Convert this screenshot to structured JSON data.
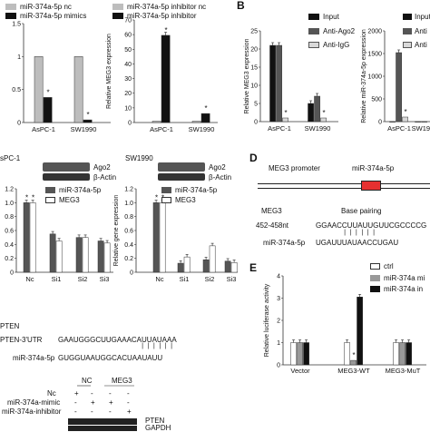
{
  "colors": {
    "black": "#111111",
    "gray": "#bdbdbd",
    "light": "#d9d9d9",
    "white": "#ffffff",
    "red": "#e63030",
    "axis": "#333333"
  },
  "panelB_letter": "B",
  "panelD_letter": "D",
  "panelE_letter": "E",
  "chart_data": [
    {
      "id": "A1",
      "type": "bar",
      "series": [
        {
          "name": "miR-374a-5p nc",
          "color": "#bdbdbd",
          "values": [
            1.0,
            1.0
          ]
        },
        {
          "name": "miR-374a-5p mimics",
          "color": "#111111",
          "values": [
            0.38,
            0.04
          ]
        }
      ],
      "categories": [
        "AsPC-1",
        "SW1990"
      ],
      "yticks": [
        "0",
        "0.5",
        "1",
        "1.5"
      ],
      "ylim": [
        0,
        1.5
      ],
      "ylabel": "",
      "annotations": [
        "*",
        "*"
      ]
    },
    {
      "id": "A2",
      "type": "bar",
      "series": [
        {
          "name": "miR-374a-5p inhibitor nc",
          "color": "#bdbdbd",
          "values": [
            1,
            1
          ]
        },
        {
          "name": "miR-374a-5p inhibitor",
          "color": "#111111",
          "values": [
            68,
            7
          ]
        }
      ],
      "categories": [
        "AsPC-1",
        "SW1990"
      ],
      "yticks": [
        "0",
        "10",
        "20",
        "30",
        "40",
        "50",
        "60",
        "70"
      ],
      "ylim": [
        0,
        80
      ],
      "ylabel": "Relative MEG3 expression",
      "annotations": [
        "*",
        "*"
      ]
    },
    {
      "id": "B1",
      "type": "bar",
      "series": [
        {
          "name": "Input",
          "color": "#111111",
          "values": [
            21,
            5
          ]
        },
        {
          "name": "Anti-Ago2",
          "color": "#555555",
          "values": [
            21,
            7
          ]
        },
        {
          "name": "Anti-IgG",
          "color": "#d9d9d9",
          "values": [
            1,
            1
          ]
        }
      ],
      "categories": [
        "AsPC-1",
        "SW1990"
      ],
      "yticks": [
        "0",
        "5",
        "10",
        "15",
        "20",
        "25"
      ],
      "ylim": [
        0,
        25
      ],
      "ylabel": "Relative MEG3 expression",
      "annotations": [
        "*",
        "*"
      ]
    },
    {
      "id": "B2",
      "type": "bar",
      "series": [
        {
          "name": "Input",
          "color": "#111111",
          "values": [
            1,
            1
          ]
        },
        {
          "name": "Anti-Ago2",
          "color": "#555555",
          "values": [
            1520,
            1
          ]
        },
        {
          "name": "Anti-IgG",
          "color": "#d9d9d9",
          "values": [
            100,
            1
          ]
        }
      ],
      "categories": [
        "AsPC-1",
        "SW1990"
      ],
      "yticks": [
        "0",
        "500",
        "1000",
        "1500",
        "2000"
      ],
      "ylim": [
        0,
        2000
      ],
      "ylabel": "Relative miR-374a-5p expression",
      "annotations": [
        "*"
      ]
    },
    {
      "id": "C1",
      "type": "bar",
      "series": [
        {
          "name": "miR-374a-5p",
          "color": "#555555",
          "values": [
            1.0,
            0.55,
            0.5,
            0.45
          ]
        },
        {
          "name": "MEG3",
          "color": "#ffffff",
          "values": [
            1.0,
            0.45,
            0.5,
            0.42
          ]
        }
      ],
      "categories": [
        "Nc",
        "Si1",
        "Si2",
        "Si3"
      ],
      "yticks": [
        "0",
        "0.2",
        "0.4",
        "0.6",
        "0.8",
        "1.0",
        "1.2"
      ],
      "ylim": [
        0,
        1.2
      ],
      "ylabel": "",
      "annotations": [
        "*",
        "*"
      ]
    },
    {
      "id": "C2",
      "type": "bar",
      "series": [
        {
          "name": "miR-374a-5p",
          "color": "#555555",
          "values": [
            1.0,
            0.13,
            0.18,
            0.16
          ]
        },
        {
          "name": "MEG3",
          "color": "#ffffff",
          "values": [
            1.0,
            0.22,
            0.38,
            0.14
          ]
        }
      ],
      "categories": [
        "Nc",
        "Si1",
        "Si2",
        "Si3"
      ],
      "yticks": [
        "0",
        "0.2",
        "0.4",
        "0.6",
        "0.8",
        "1.0",
        "1.2"
      ],
      "ylim": [
        0,
        1.2
      ],
      "ylabel": "Relative gene expression",
      "annotations": [
        "*",
        "*",
        "*"
      ]
    },
    {
      "id": "E",
      "type": "bar",
      "series": [
        {
          "name": "ctrl",
          "color": "#ffffff",
          "values": [
            1,
            1,
            1
          ]
        },
        {
          "name": "miR-374a mi",
          "color": "#999999",
          "values": [
            1,
            0.2,
            1
          ]
        },
        {
          "name": "miR-374a in",
          "color": "#111111",
          "values": [
            1,
            3.05,
            1
          ]
        }
      ],
      "categories": [
        "Vector",
        "MEG3-WT",
        "MEG3-MuT"
      ],
      "yticks": [
        "0",
        "1",
        "2",
        "3",
        "4"
      ],
      "ylim": [
        0,
        4
      ],
      "ylabel": "Relative luciferase activity",
      "annotations": [
        "*"
      ]
    }
  ],
  "legendA": {
    "nc": "miR-374a-5p nc",
    "mimics": "miR-374a-5p mimics",
    "inhib_nc": "miR-374a-5p inhibitor nc",
    "inhib": "miR-374a-5p inhibitor"
  },
  "legendB": {
    "input": "Input",
    "ago2": "Anti-Ago2",
    "igg": "Anti-IgG",
    "input2": "Input",
    "ago2_2": "Anti",
    "igg2": "Anti"
  },
  "panelC": {
    "cell1": "sPC-1",
    "cell2": "SW1990",
    "ago2": "Ago2",
    "actin": "β-Actin",
    "ago2_2": "Ago2",
    "actin2": "β-Actin",
    "leg_mir": "miR-374a-5p",
    "leg_meg": "MEG3",
    "leg_mir2": "miR-374a-5p",
    "leg_meg2": "MEG3"
  },
  "pten": {
    "title": "PTEN",
    "utr_label": "PTEN-3'UTR",
    "utr_seq": "GAAUGGGCUUGAAACAUUAUAAA",
    "mir_label": "miR-374a-5p",
    "mir_seq": "GUGGUAAUGGCACUAAUAUU"
  },
  "western": {
    "nc": "NC",
    "meg3": "MEG3",
    "row1": "Nc",
    "row2": "miR-374a-mimic",
    "row3": "miR-374a-inhibitor",
    "r1": [
      "+",
      "-",
      "-",
      "-"
    ],
    "r2": [
      "-",
      "+",
      "+",
      "-"
    ],
    "r3": [
      "-",
      "-",
      "-",
      "+"
    ],
    "pten": "PTEN",
    "gapdh": "GAPDH"
  },
  "panelD": {
    "promoter": "MEG3 promoter",
    "mir": "miR-374a-5p",
    "meg3": "MEG3",
    "pairing": "Base pairing",
    "pos": "452-458nt",
    "meg3_seq": "GGAACCUUAUUGUUCGCCCCG",
    "mir_label": "miR-374a-5p",
    "mir_seq": "UGAUUUAUAACCUGAU"
  }
}
